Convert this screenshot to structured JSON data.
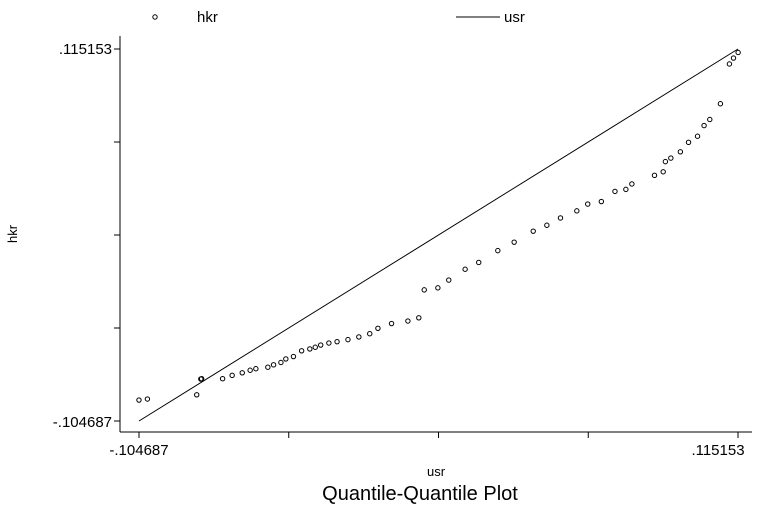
{
  "chart_data": {
    "type": "scatter",
    "title": "Quantile-Quantile Plot",
    "xlabel": "usr",
    "ylabel": "hkr",
    "xlim": [
      -0.104687,
      0.115153
    ],
    "ylim": [
      -0.104687,
      0.115153
    ],
    "x_tick_labels": [
      "-.104687",
      ".115153"
    ],
    "y_tick_labels": [
      ".115153",
      "-.104687"
    ],
    "legend": [
      {
        "label": "hkr",
        "marker": "circle"
      },
      {
        "label": "usr",
        "marker": "line"
      }
    ],
    "series": [
      {
        "name": "hkr",
        "marker": "hollow-circle",
        "points": [
          [
            -0.1047,
            -0.0923
          ],
          [
            -0.1016,
            -0.0917
          ],
          [
            -0.0835,
            -0.0892
          ],
          [
            -0.082,
            -0.0799
          ],
          [
            -0.0817,
            -0.0797
          ],
          [
            -0.074,
            -0.0797
          ],
          [
            -0.0705,
            -0.0777
          ],
          [
            -0.0668,
            -0.0762
          ],
          [
            -0.0639,
            -0.0747
          ],
          [
            -0.0618,
            -0.0738
          ],
          [
            -0.0574,
            -0.0729
          ],
          [
            -0.0553,
            -0.0715
          ],
          [
            -0.0526,
            -0.0701
          ],
          [
            -0.0508,
            -0.068
          ],
          [
            -0.048,
            -0.0666
          ],
          [
            -0.045,
            -0.0632
          ],
          [
            -0.042,
            -0.0621
          ],
          [
            -0.04,
            -0.0611
          ],
          [
            -0.038,
            -0.0598
          ],
          [
            -0.035,
            -0.0586
          ],
          [
            -0.032,
            -0.0578
          ],
          [
            -0.028,
            -0.0566
          ],
          [
            -0.024,
            -0.055
          ],
          [
            -0.02,
            -0.0531
          ],
          [
            -0.017,
            -0.0499
          ],
          [
            -0.012,
            -0.0471
          ],
          [
            -0.006,
            -0.0456
          ],
          [
            -0.002,
            -0.0437
          ],
          [
            0.0,
            -0.0272
          ],
          [
            0.005,
            -0.026
          ],
          [
            0.009,
            -0.0214
          ],
          [
            0.015,
            -0.015
          ],
          [
            0.02,
            -0.011
          ],
          [
            0.027,
            -0.004
          ],
          [
            0.033,
            0.001
          ],
          [
            0.04,
            0.0075
          ],
          [
            0.045,
            0.011
          ],
          [
            0.05,
            0.0153
          ],
          [
            0.056,
            0.0195
          ],
          [
            0.06,
            0.0235
          ],
          [
            0.065,
            0.025
          ],
          [
            0.07,
            0.031
          ],
          [
            0.074,
            0.0322
          ],
          [
            0.0762,
            0.0354
          ],
          [
            0.0845,
            0.0405
          ],
          [
            0.0877,
            0.0426
          ],
          [
            0.0885,
            0.0486
          ],
          [
            0.0905,
            0.0507
          ],
          [
            0.094,
            0.0544
          ],
          [
            0.097,
            0.06
          ],
          [
            0.1003,
            0.0636
          ],
          [
            0.1027,
            0.0699
          ],
          [
            0.1048,
            0.0735
          ],
          [
            0.1087,
            0.0828
          ],
          [
            0.112,
            0.1063
          ],
          [
            0.1135,
            0.1098
          ],
          [
            0.1152,
            0.1131
          ]
        ]
      },
      {
        "name": "usr",
        "marker": "line",
        "points": [
          [
            -0.104687,
            -0.104687
          ],
          [
            0.115153,
            0.115153
          ]
        ]
      }
    ]
  }
}
